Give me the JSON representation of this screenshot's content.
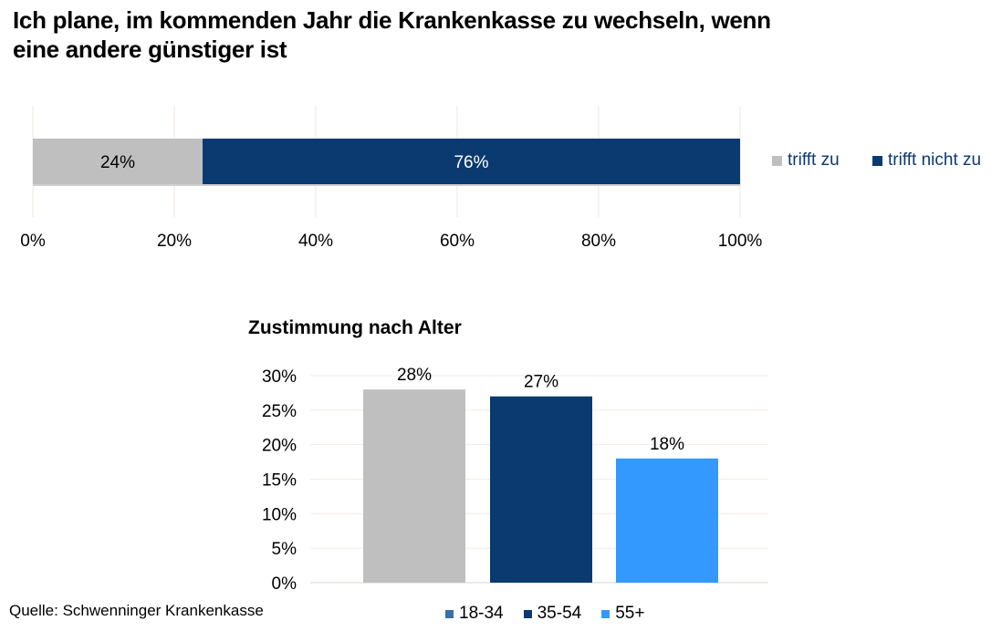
{
  "title_lines": [
    "Ich plane, im kommenden Jahr die Krankenkasse zu wechseln, wenn",
    "eine andere günstiger ist"
  ],
  "source": "Quelle: Schwenninger Krankenkasse",
  "chart_data": [
    {
      "type": "bar",
      "orientation": "horizontal",
      "stacked": true,
      "title": "",
      "categories": [
        ""
      ],
      "series": [
        {
          "name": "trifft zu",
          "values": [
            24
          ],
          "label": "24%",
          "color": "#bfbfbf"
        },
        {
          "name": "trifft nicht zu",
          "values": [
            76
          ],
          "label": "76%",
          "color": "#0b3a70"
        }
      ],
      "xlim": [
        0,
        100
      ],
      "x_ticks": [
        "0%",
        "20%",
        "40%",
        "60%",
        "80%",
        "100%"
      ],
      "grid": true,
      "legend_position": "right"
    },
    {
      "type": "bar",
      "title": "Zustimmung nach Alter",
      "categories": [
        "18-34",
        "35-54",
        "55+"
      ],
      "values": [
        28,
        27,
        18
      ],
      "labels": [
        "28%",
        "27%",
        "18%"
      ],
      "colors": [
        "#bfbfbf",
        "#0b3a70",
        "#3399ff"
      ],
      "legend_colors": [
        "#3a6fa8",
        "#0b3a70",
        "#3399ff"
      ],
      "ylim": [
        0,
        30
      ],
      "y_ticks": [
        "0%",
        "5%",
        "10%",
        "15%",
        "20%",
        "25%",
        "30%"
      ],
      "grid": true,
      "legend_position": "bottom"
    }
  ]
}
